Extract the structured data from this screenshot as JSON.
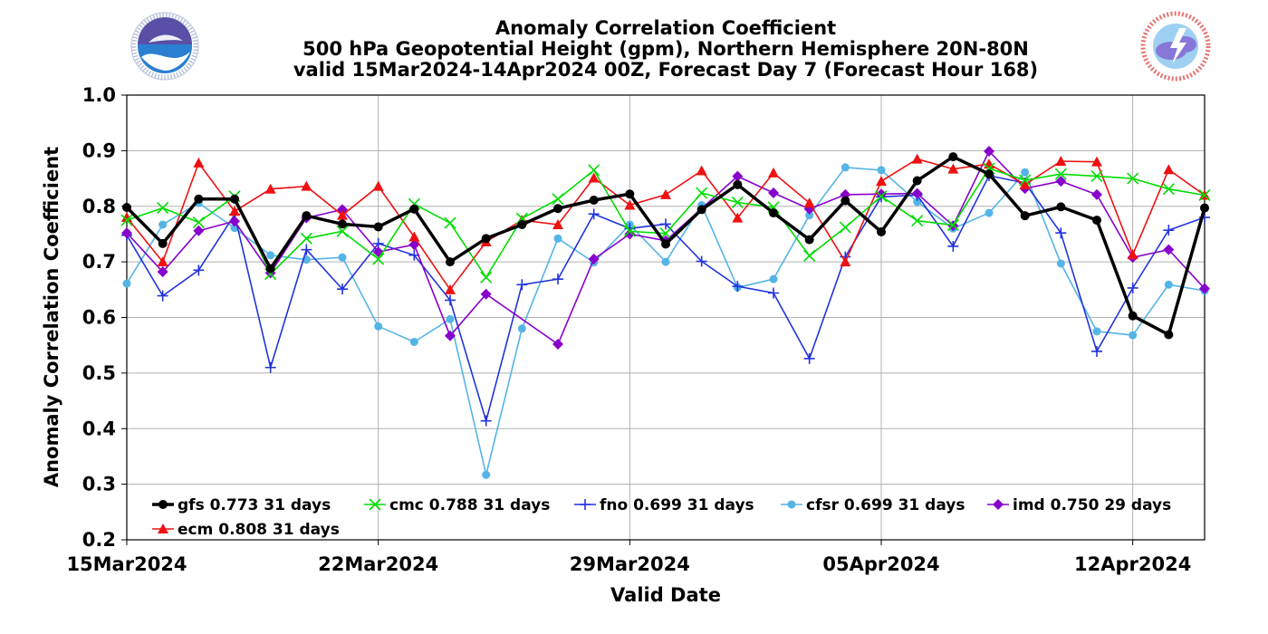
{
  "chart_data": {
    "type": "line",
    "title_lines": [
      "Anomaly Correlation Coefficient",
      "500 hPa Geopotential Height (gpm), Northern Hemisphere 20N-80N",
      "valid 15Mar2024-14Apr2024 00Z, Forecast Day 7 (Forecast Hour 168)"
    ],
    "xlabel": "Valid Date",
    "ylabel": "Anomaly Correlation Coefficient",
    "ylim": [
      0.2,
      1.0
    ],
    "yticks": [
      "0.2",
      "0.3",
      "0.4",
      "0.5",
      "0.6",
      "0.7",
      "0.8",
      "0.9",
      "1.0"
    ],
    "xticks": [
      {
        "day": 0,
        "label": "15Mar2024"
      },
      {
        "day": 7,
        "label": "22Mar2024"
      },
      {
        "day": 14,
        "label": "29Mar2024"
      },
      {
        "day": 21,
        "label": "05Apr2024"
      },
      {
        "day": 28,
        "label": "12Apr2024"
      }
    ],
    "x_dates": [
      "15Mar2024",
      "16Mar2024",
      "17Mar2024",
      "18Mar2024",
      "19Mar2024",
      "20Mar2024",
      "21Mar2024",
      "22Mar2024",
      "23Mar2024",
      "24Mar2024",
      "25Mar2024",
      "26Mar2024",
      "27Mar2024",
      "28Mar2024",
      "29Mar2024",
      "30Mar2024",
      "31Mar2024",
      "01Apr2024",
      "02Apr2024",
      "03Apr2024",
      "04Apr2024",
      "05Apr2024",
      "06Apr2024",
      "07Apr2024",
      "08Apr2024",
      "09Apr2024",
      "10Apr2024",
      "11Apr2024",
      "12Apr2024",
      "13Apr2024",
      "14Apr2024"
    ],
    "grid": true,
    "legend_position": "bottom-left",
    "series": [
      {
        "key": "gfs",
        "legend": "gfs 0.773 31 days",
        "color": "#000000",
        "marker": "circle",
        "values": [
          0.798,
          0.733,
          0.813,
          0.813,
          0.688,
          0.783,
          0.768,
          0.763,
          0.795,
          0.7,
          0.742,
          0.767,
          0.796,
          0.811,
          0.822,
          0.732,
          0.794,
          0.839,
          0.788,
          0.74,
          0.81,
          0.754,
          0.846,
          0.889,
          0.858,
          0.783,
          0.799,
          0.775,
          0.603,
          0.569,
          0.797
        ]
      },
      {
        "key": "cmc",
        "legend": "cmc 0.788 31 days",
        "color": "#00dd00",
        "marker": "x",
        "values": [
          0.775,
          0.797,
          0.771,
          0.818,
          0.678,
          0.742,
          0.755,
          0.705,
          0.804,
          0.77,
          0.672,
          0.778,
          0.813,
          0.865,
          0.755,
          0.751,
          0.824,
          0.807,
          0.798,
          0.711,
          0.762,
          0.818,
          0.774,
          0.766,
          0.868,
          0.847,
          0.858,
          0.854,
          0.85,
          0.831,
          0.82
        ]
      },
      {
        "key": "fno",
        "legend": "fno 0.699 31 days",
        "color": "#2233dd",
        "marker": "plus",
        "values": [
          0.748,
          0.639,
          0.685,
          0.785,
          0.51,
          0.722,
          0.651,
          0.733,
          0.712,
          0.631,
          0.414,
          0.659,
          0.669,
          0.786,
          0.76,
          0.768,
          0.701,
          0.656,
          0.644,
          0.526,
          0.709,
          0.817,
          0.82,
          0.728,
          0.855,
          0.842,
          0.752,
          0.539,
          0.653,
          0.757,
          0.78
        ]
      },
      {
        "key": "cfsr",
        "legend": "cfsr 0.699 31 days",
        "color": "#55b4e6",
        "marker": "dot",
        "values": [
          0.661,
          0.767,
          0.806,
          0.761,
          0.712,
          0.704,
          0.708,
          0.584,
          0.556,
          0.597,
          0.317,
          0.58,
          0.742,
          0.699,
          0.767,
          0.7,
          0.802,
          0.654,
          0.669,
          0.784,
          0.87,
          0.865,
          0.808,
          0.76,
          0.788,
          0.861,
          0.697,
          0.575,
          0.568,
          0.659,
          0.648
        ]
      },
      {
        "key": "imd",
        "legend": "imd 0.750 29 days",
        "color": "#8800cc",
        "marker": "diamond",
        "values": [
          0.752,
          0.682,
          0.756,
          0.773,
          0.68,
          0.779,
          0.794,
          0.718,
          0.731,
          0.567,
          0.642,
          null,
          0.552,
          0.705,
          0.75,
          0.738,
          null,
          0.854,
          0.824,
          0.795,
          0.821,
          0.822,
          0.823,
          0.765,
          0.899,
          0.832,
          0.845,
          0.821,
          0.708,
          0.722,
          0.652
        ]
      },
      {
        "key": "ecm",
        "legend": "ecm 0.808 31 days",
        "color": "#ee1111",
        "marker": "triangle",
        "values": [
          0.78,
          0.7,
          0.878,
          0.791,
          0.831,
          0.836,
          0.784,
          0.836,
          0.745,
          0.65,
          0.736,
          0.775,
          0.767,
          0.851,
          0.802,
          0.821,
          0.864,
          0.779,
          0.86,
          0.806,
          0.7,
          0.845,
          0.885,
          0.867,
          0.876,
          0.839,
          0.881,
          0.88,
          0.713,
          0.866,
          0.82
        ]
      }
    ]
  }
}
